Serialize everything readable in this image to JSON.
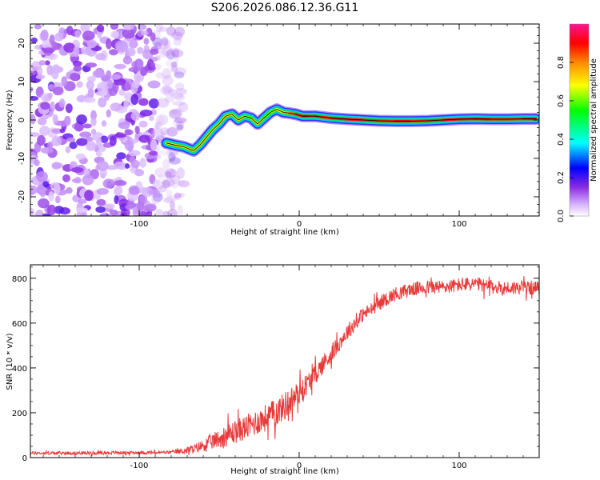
{
  "title": "S206.2026.086.12.36.G11",
  "chart_data": [
    {
      "type": "heatmap",
      "name": "spectrogram",
      "xlabel": "Height of straight line (km)",
      "ylabel": "Frequency (Hz)",
      "xlim": [
        -168,
        150
      ],
      "ylim": [
        -25,
        25
      ],
      "xticks": [
        -100,
        0,
        100
      ],
      "xtick_labels": [
        "-100",
        "0",
        "100"
      ],
      "yticks": [
        -20,
        -10,
        0,
        10,
        20
      ],
      "ytick_labels": [
        "-20",
        "-10",
        "0",
        "10",
        "20"
      ],
      "noise_region_x": [
        -168,
        -80
      ],
      "ridge": {
        "x": [
          -83,
          -78,
          -72,
          -66,
          -62,
          -58,
          -54,
          -50,
          -46,
          -42,
          -38,
          -34,
          -30,
          -26,
          -22,
          -18,
          -14,
          -10,
          -6,
          -2,
          2,
          6,
          10,
          20,
          30,
          40,
          50,
          60,
          70,
          80,
          90,
          100,
          110,
          120,
          130,
          140,
          148
        ],
        "y": [
          -6,
          -6.5,
          -7,
          -8,
          -6.5,
          -4.5,
          -2.5,
          -1,
          1,
          1.5,
          0,
          1,
          0.5,
          -1,
          0.5,
          2,
          2.8,
          2,
          1.8,
          1.5,
          1,
          1,
          1,
          0.5,
          0.2,
          0,
          -0.2,
          -0.3,
          -0.3,
          -0.2,
          0,
          0.2,
          0.3,
          0.2,
          0.2,
          0.3,
          0.3
        ],
        "amplitude": [
          0.4,
          0.5,
          0.5,
          0.5,
          0.45,
          0.45,
          0.45,
          0.45,
          0.45,
          0.5,
          0.55,
          0.6,
          0.6,
          0.55,
          0.6,
          0.6,
          0.65,
          0.7,
          0.8,
          0.85,
          0.9,
          0.9,
          0.85,
          0.9,
          0.95,
          0.9,
          0.85,
          0.9,
          0.9,
          0.85,
          0.9,
          0.95,
          0.9,
          0.9,
          0.85,
          0.9,
          0.9
        ]
      }
    },
    {
      "type": "colorbar",
      "name": "colorbar",
      "label": "Normalized spectral amplitude",
      "range": [
        0,
        1
      ],
      "ticks": [
        0,
        0.2,
        0.4,
        0.6,
        0.8
      ],
      "tick_labels": [
        "0.0",
        "0.2",
        "0.4",
        "0.6",
        "0.8"
      ],
      "stops": [
        "#ffffff",
        "#d7b4ff",
        "#8a2be2",
        "#0000ff",
        "#00ffff",
        "#00ff00",
        "#ffff00",
        "#ff8800",
        "#ff0000",
        "#ff1493"
      ]
    },
    {
      "type": "line",
      "name": "snr",
      "xlabel": "Height of straight line (km)",
      "ylabel": "SNR (10 * v/v)",
      "xlim": [
        -168,
        150
      ],
      "ylim": [
        0,
        860
      ],
      "xticks": [
        -100,
        0,
        100
      ],
      "xtick_labels": [
        "-100",
        "0",
        "100"
      ],
      "yticks": [
        0,
        200,
        400,
        600,
        800
      ],
      "ytick_labels": [
        "0",
        "200",
        "400",
        "600",
        "800"
      ],
      "color": "#e83a3a",
      "x": [
        -168,
        -140,
        -110,
        -90,
        -80,
        -72,
        -65,
        -60,
        -55,
        -50,
        -45,
        -40,
        -35,
        -30,
        -25,
        -20,
        -15,
        -10,
        -5,
        0,
        5,
        10,
        15,
        20,
        25,
        30,
        35,
        40,
        45,
        50,
        55,
        60,
        70,
        80,
        90,
        100,
        110,
        120,
        130,
        140,
        150
      ],
      "y": [
        20,
        20,
        22,
        22,
        24,
        30,
        40,
        55,
        70,
        85,
        100,
        115,
        130,
        145,
        165,
        180,
        200,
        225,
        255,
        290,
        330,
        370,
        420,
        460,
        510,
        560,
        600,
        640,
        660,
        690,
        710,
        730,
        750,
        760,
        760,
        770,
        775,
        760,
        755,
        760,
        755
      ],
      "noise_amplitude": [
        8,
        8,
        8,
        8,
        8,
        15,
        25,
        30,
        40,
        45,
        55,
        60,
        60,
        65,
        65,
        70,
        70,
        70,
        70,
        60,
        55,
        50,
        50,
        45,
        40,
        40,
        40,
        35,
        35,
        35,
        35,
        35,
        35,
        35,
        35,
        35,
        35,
        35,
        35,
        35,
        35
      ]
    }
  ]
}
